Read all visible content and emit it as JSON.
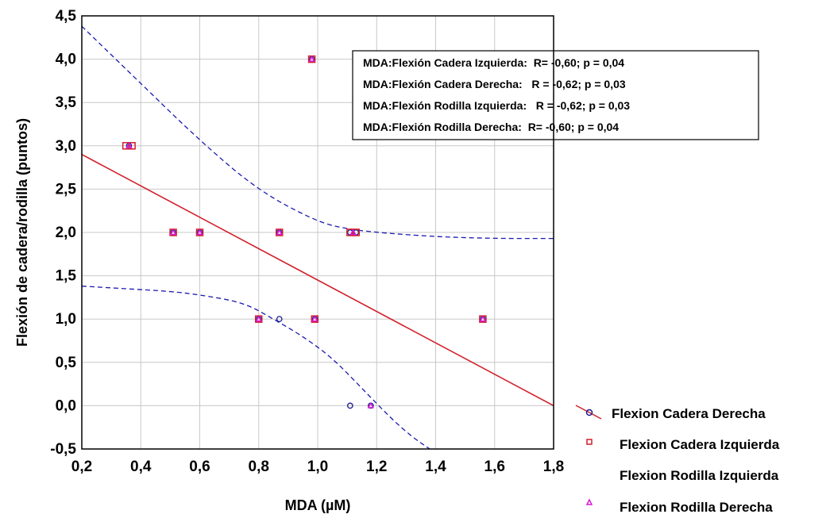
{
  "chart_data": {
    "type": "scatter",
    "xlabel": "MDA (µM)",
    "ylabel": "Flexión de cadera/rodilla (puntos)",
    "xlim": [
      0.2,
      1.8
    ],
    "ylim": [
      -0.5,
      4.5
    ],
    "xticks": [
      0.2,
      0.4,
      0.6,
      0.8,
      1.0,
      1.2,
      1.4,
      1.6,
      1.8
    ],
    "xtick_labels": [
      "0,2",
      "0,4",
      "0,6",
      "0,8",
      "1,0",
      "1,2",
      "1,4",
      "1,6",
      "1,8"
    ],
    "yticks": [
      -0.5,
      0.0,
      0.5,
      1.0,
      1.5,
      2.0,
      2.5,
      3.0,
      3.5,
      4.0,
      4.5
    ],
    "ytick_labels": [
      "-0,5",
      "0,0",
      "0,5",
      "1,0",
      "1,5",
      "2,0",
      "2,5",
      "3,0",
      "3,5",
      "4,0",
      "4,5"
    ],
    "grid": true,
    "legend_position": "bottom-right-outside",
    "stats_box": [
      "MDA:Flexión Cadera Izquierda:  R= -0,60; p = 0,04",
      "MDA:Flexión Cadera Derecha:   R = -0,62; p = 0,03",
      "MDA:Flexión Rodilla Izquierda:   R = -0,62; p = 0,03",
      "MDA:Flexión Rodilla Derecha:  R= -0,60; p = 0,04"
    ],
    "series": [
      {
        "name": "Flexion Cadera Derecha",
        "marker": "circle",
        "color": "#1b1b8f",
        "points": [
          [
            0.36,
            3.0
          ],
          [
            0.51,
            2.0
          ],
          [
            0.6,
            2.0
          ],
          [
            0.87,
            2.0
          ],
          [
            0.8,
            1.0
          ],
          [
            0.87,
            1.0
          ],
          [
            0.99,
            1.0
          ],
          [
            0.98,
            4.0
          ],
          [
            1.11,
            2.0
          ],
          [
            1.13,
            2.0
          ],
          [
            1.11,
            0.0
          ],
          [
            1.18,
            0.0
          ],
          [
            1.56,
            1.0
          ]
        ]
      },
      {
        "name": "Flexion Cadera Izquierda",
        "marker": "square",
        "color": "#d21f2a",
        "points": [
          [
            0.35,
            3.0
          ],
          [
            0.37,
            3.0
          ],
          [
            0.51,
            2.0
          ],
          [
            0.6,
            2.0
          ],
          [
            0.87,
            2.0
          ],
          [
            0.8,
            1.0
          ],
          [
            0.99,
            1.0
          ],
          [
            0.98,
            4.0
          ],
          [
            1.11,
            2.0
          ],
          [
            1.13,
            2.0
          ],
          [
            1.56,
            1.0
          ]
        ]
      },
      {
        "name": "Flexion Rodilla Izquierda",
        "marker": "none",
        "color": "#000000",
        "points": []
      },
      {
        "name": "Flexion Rodilla Derecha",
        "marker": "triangle",
        "color": "#d61ad6",
        "points": [
          [
            0.36,
            3.0
          ],
          [
            0.51,
            2.0
          ],
          [
            0.6,
            2.0
          ],
          [
            0.87,
            2.0
          ],
          [
            0.8,
            1.0
          ],
          [
            0.99,
            1.0
          ],
          [
            0.98,
            4.0
          ],
          [
            1.12,
            2.0
          ],
          [
            1.18,
            0.0
          ],
          [
            1.56,
            1.0
          ]
        ]
      }
    ],
    "regression_line": {
      "color": "#d21f2a",
      "x": [
        0.2,
        1.8
      ],
      "y": [
        2.9,
        0.0
      ]
    },
    "confidence_band_upper": {
      "color": "#1b1bb0",
      "x": [
        0.2,
        0.4,
        0.6,
        0.8,
        1.0,
        1.1,
        1.2,
        1.4,
        1.6,
        1.8
      ],
      "y": [
        4.38,
        3.72,
        3.06,
        2.48,
        2.12,
        2.04,
        2.0,
        1.95,
        1.93,
        1.93
      ]
    },
    "confidence_band_lower": {
      "color": "#1b1bb0",
      "x": [
        0.2,
        0.35,
        0.5,
        0.6,
        0.75,
        0.85,
        0.95,
        1.05,
        1.15,
        1.25,
        1.32,
        1.38
      ],
      "y": [
        1.38,
        1.35,
        1.32,
        1.28,
        1.19,
        1.0,
        0.8,
        0.55,
        0.2,
        -0.15,
        -0.36,
        -0.5
      ]
    }
  }
}
